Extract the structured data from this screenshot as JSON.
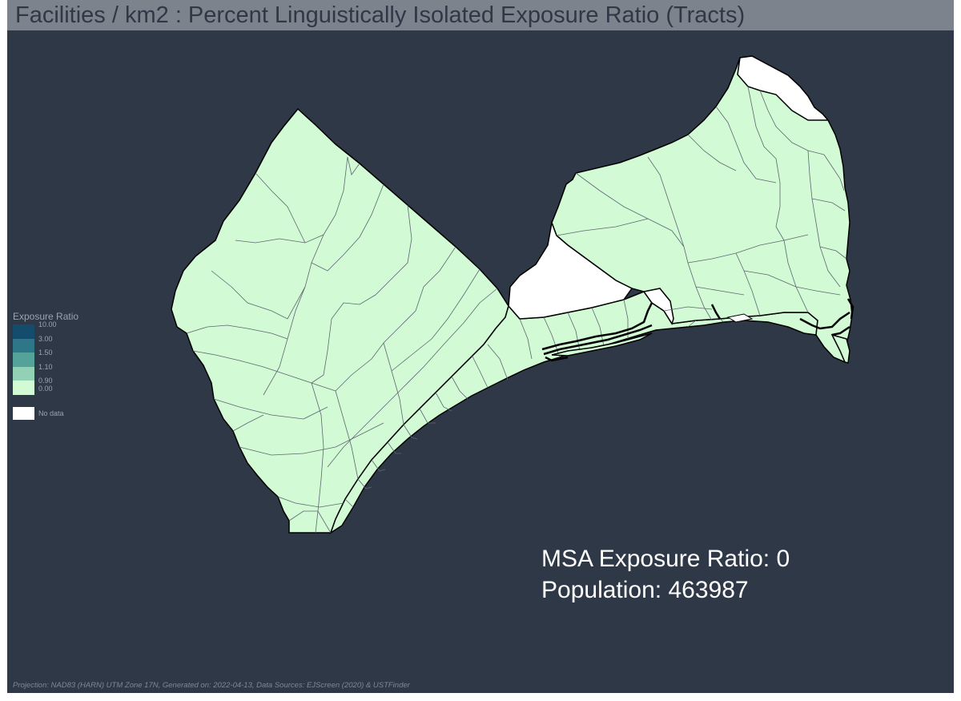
{
  "title": "Facilities / km2 : Percent Linguistically Isolated Exposure Ratio (Tracts)",
  "legend": {
    "title": "Exposure Ratio",
    "classes": [
      {
        "label": "10.00",
        "color": "#134c6d"
      },
      {
        "label": "3.00",
        "color": "#2e7788"
      },
      {
        "label": "1.50",
        "color": "#53a39a"
      },
      {
        "label": "1.10",
        "color": "#92d1b6"
      },
      {
        "label": "0.90",
        "color": "#d1fad5"
      }
    ],
    "bottom_label": "0.00",
    "nodata": {
      "label": "No data",
      "color": "#ffffff"
    }
  },
  "stats": {
    "exposure_ratio": "MSA Exposure Ratio: 0",
    "population": "Population: 463987"
  },
  "footer": "Projection: NAD83 (HARN) UTM Zone 17N, Generated on: 2022-04-13, Data Sources: EJScreen (2020) & USTFinder",
  "colors": {
    "background": "#2e3847",
    "title_bar": "#7d838c",
    "tract_fill": "#d1fad5",
    "tract_border": "#5f6670",
    "nodata_fill": "#ffffff"
  }
}
